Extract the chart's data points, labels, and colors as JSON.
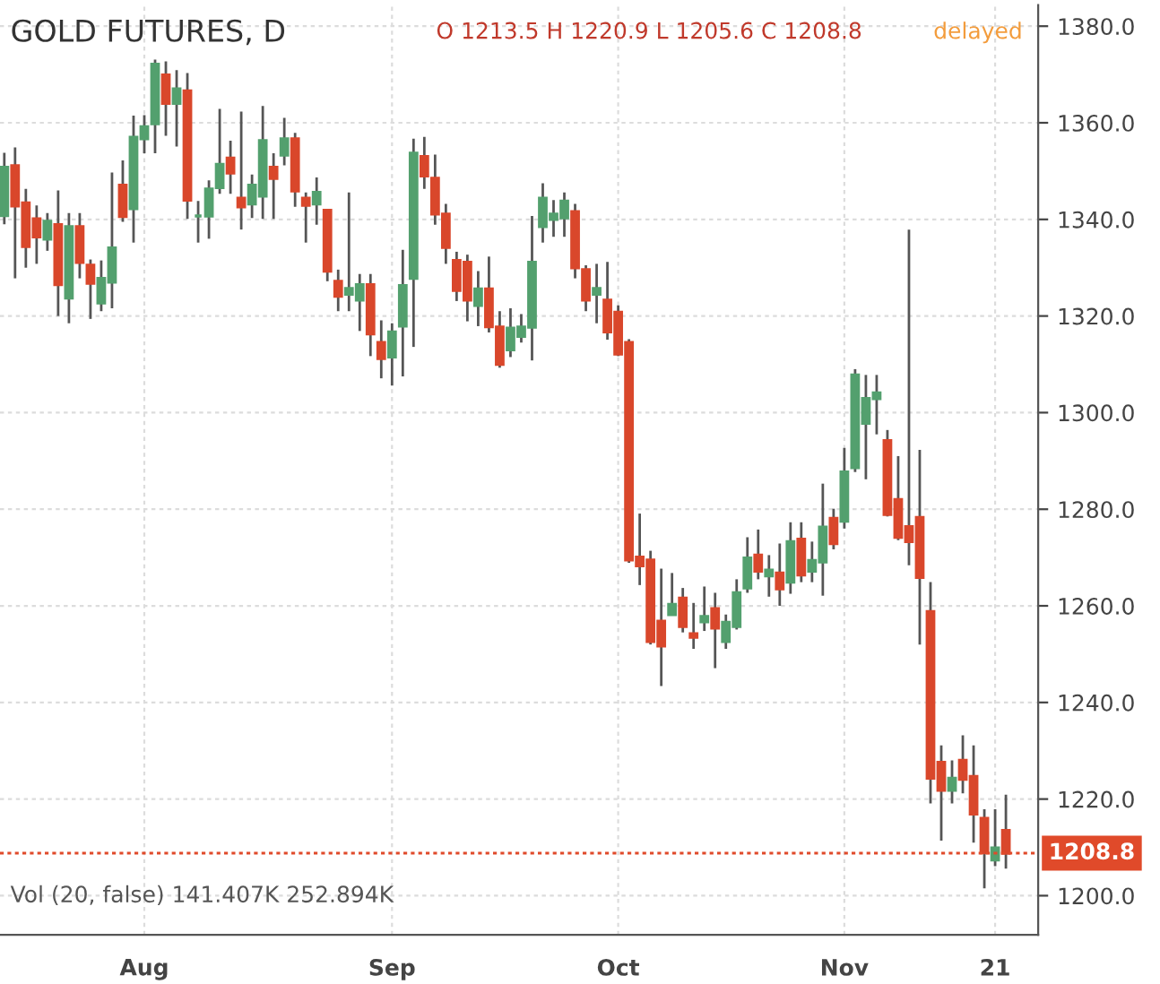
{
  "chart_data": {
    "type": "candlestick",
    "title": "GOLD FUTURES, D",
    "annotations": [
      "O 1213.5 H 1220.9 L 1205.6 C 1208.8",
      "delayed",
      "Vol (20, false) 141.407K 252.894K"
    ],
    "categories": [
      null,
      null,
      null,
      null,
      null,
      null,
      null,
      null,
      null,
      null,
      null,
      null,
      null,
      "Aug",
      null,
      null,
      null,
      null,
      null,
      null,
      null,
      null,
      null,
      null,
      null,
      null,
      null,
      null,
      null,
      null,
      null,
      null,
      null,
      null,
      null,
      null,
      "Sep",
      null,
      null,
      null,
      null,
      null,
      null,
      null,
      null,
      null,
      null,
      null,
      null,
      null,
      null,
      null,
      null,
      null,
      null,
      null,
      null,
      "Oct",
      null,
      null,
      null,
      null,
      null,
      null,
      null,
      null,
      null,
      null,
      null,
      null,
      null,
      null,
      null,
      null,
      null,
      null,
      null,
      null,
      "Nov",
      null,
      null,
      null,
      null,
      null,
      null,
      null,
      null,
      null,
      null,
      null,
      null,
      null,
      "21",
      null
    ],
    "ohlc": [
      [
        1340.8,
        1353.8,
        1339.0,
        1350.8
      ],
      [
        1351.1,
        1354.9,
        1327.8,
        1342.8
      ],
      [
        1343.4,
        1346.3,
        1330.0,
        1334.4
      ],
      [
        1340.1,
        1342.9,
        1330.8,
        1336.4
      ],
      [
        1335.9,
        1341.3,
        1333.5,
        1339.6
      ],
      [
        1338.9,
        1346.0,
        1320.0,
        1326.5
      ],
      [
        1323.7,
        1341.3,
        1318.5,
        1338.5
      ],
      [
        1338.5,
        1341.3,
        1327.8,
        1331.1
      ],
      [
        1330.5,
        1331.7,
        1319.4,
        1326.8
      ],
      [
        1322.7,
        1331.5,
        1321.0,
        1327.8
      ],
      [
        1327.0,
        1349.7,
        1321.6,
        1334.1
      ],
      [
        1347.1,
        1352.2,
        1339.5,
        1340.6
      ],
      [
        1342.2,
        1361.5,
        1335.2,
        1357.0
      ],
      [
        1356.7,
        1361.6,
        1353.7,
        1359.2
      ],
      [
        1359.8,
        1373.1,
        1353.7,
        1372.1
      ],
      [
        1369.9,
        1372.7,
        1357.3,
        1364.0
      ],
      [
        1364.0,
        1370.9,
        1355.1,
        1367.0
      ],
      [
        1366.6,
        1370.3,
        1340.1,
        1344.0
      ],
      [
        1340.7,
        1343.8,
        1335.2,
        1340.7
      ],
      [
        1340.7,
        1348.1,
        1336.0,
        1346.3
      ],
      [
        1346.6,
        1362.9,
        1345.3,
        1351.4
      ],
      [
        1352.7,
        1356.3,
        1345.3,
        1349.6
      ],
      [
        1344.4,
        1362.3,
        1337.9,
        1342.6
      ],
      [
        1343.2,
        1349.3,
        1340.3,
        1347.1
      ],
      [
        1344.8,
        1363.5,
        1340.1,
        1356.3
      ],
      [
        1350.8,
        1353.7,
        1340.1,
        1348.5
      ],
      [
        1353.3,
        1361.0,
        1351.2,
        1356.7
      ],
      [
        1356.7,
        1357.9,
        1342.6,
        1345.9
      ],
      [
        1344.4,
        1345.6,
        1335.2,
        1342.9
      ],
      [
        1343.2,
        1348.7,
        1338.9,
        1345.6
      ],
      [
        1341.9,
        1341.9,
        1327.2,
        1329.3
      ],
      [
        1327.2,
        1329.6,
        1321.0,
        1324.1
      ],
      [
        1324.5,
        1345.6,
        1321.0,
        1325.7
      ],
      [
        1323.3,
        1328.7,
        1316.9,
        1326.5
      ],
      [
        1326.5,
        1328.7,
        1311.7,
        1316.3
      ],
      [
        1314.5,
        1319.1,
        1307.1,
        1311.2
      ],
      [
        1311.5,
        1318.5,
        1305.6,
        1316.7
      ],
      [
        1317.9,
        1333.7,
        1307.5,
        1326.3
      ],
      [
        1327.8,
        1356.7,
        1313.6,
        1353.7
      ],
      [
        1353.0,
        1357.1,
        1346.3,
        1349.0
      ],
      [
        1348.5,
        1353.4,
        1338.9,
        1341.1
      ],
      [
        1341.1,
        1343.2,
        1330.8,
        1334.2
      ],
      [
        1331.5,
        1333.3,
        1323.1,
        1325.3
      ],
      [
        1331.1,
        1332.7,
        1318.9,
        1323.3
      ],
      [
        1322.2,
        1329.3,
        1317.9,
        1325.6
      ],
      [
        1325.6,
        1332.3,
        1316.6,
        1317.8
      ],
      [
        1317.7,
        1321.0,
        1309.3,
        1310.0
      ],
      [
        1313.0,
        1321.6,
        1311.5,
        1317.5
      ],
      [
        1315.8,
        1320.4,
        1314.5,
        1317.7
      ],
      [
        1317.7,
        1340.7,
        1310.8,
        1331.1
      ],
      [
        1338.5,
        1347.5,
        1335.2,
        1344.4
      ],
      [
        1340.0,
        1344.0,
        1336.4,
        1341.1
      ],
      [
        1340.3,
        1345.6,
        1336.4,
        1343.8
      ],
      [
        1341.6,
        1343.2,
        1327.8,
        1330.0
      ],
      [
        1329.6,
        1330.5,
        1321.0,
        1323.3
      ],
      [
        1324.5,
        1330.8,
        1318.5,
        1325.7
      ],
      [
        1323.3,
        1331.2,
        1315.1,
        1316.7
      ],
      [
        1320.8,
        1322.2,
        1311.7,
        1312.1
      ],
      [
        1314.5,
        1315.2,
        1268.9,
        1269.5
      ],
      [
        1270.1,
        1279.1,
        1264.3,
        1268.3
      ],
      [
        1269.5,
        1271.4,
        1252.0,
        1252.6
      ],
      [
        1256.8,
        1267.7,
        1243.4,
        1251.7
      ],
      [
        1258.2,
        1266.8,
        1258.2,
        1260.3
      ],
      [
        1261.6,
        1263.7,
        1254.5,
        1255.7
      ],
      [
        1254.2,
        1260.6,
        1251.1,
        1253.5
      ],
      [
        1256.7,
        1264.0,
        1254.8,
        1257.8
      ],
      [
        1259.4,
        1262.7,
        1247.1,
        1255.4
      ],
      [
        1252.6,
        1258.2,
        1251.1,
        1256.6
      ],
      [
        1255.7,
        1265.5,
        1255.1,
        1262.7
      ],
      [
        1263.7,
        1274.2,
        1262.7,
        1269.9
      ],
      [
        1270.5,
        1275.8,
        1265.5,
        1267.2
      ],
      [
        1266.2,
        1270.5,
        1261.9,
        1267.4
      ],
      [
        1266.8,
        1272.9,
        1260.0,
        1263.5
      ],
      [
        1264.9,
        1277.3,
        1262.5,
        1273.3
      ],
      [
        1273.8,
        1277.3,
        1264.9,
        1266.4
      ],
      [
        1267.2,
        1273.3,
        1264.9,
        1269.4
      ],
      [
        1269.1,
        1285.3,
        1262.1,
        1276.3
      ],
      [
        1278.1,
        1280.1,
        1271.7,
        1272.9
      ],
      [
        1277.5,
        1292.7,
        1276.0,
        1287.7
      ],
      [
        1288.6,
        1309.0,
        1287.7,
        1307.8
      ],
      [
        1297.8,
        1307.8,
        1286.2,
        1302.9
      ],
      [
        1302.9,
        1307.8,
        1295.5,
        1304.1
      ],
      [
        1294.2,
        1296.4,
        1278.5,
        1278.9
      ],
      [
        1282.0,
        1291.0,
        1273.6,
        1274.2
      ],
      [
        1276.4,
        1337.9,
        1268.4,
        1273.3
      ],
      [
        1278.3,
        1292.3,
        1252.0,
        1265.9
      ],
      [
        1258.8,
        1264.9,
        1219.1,
        1224.3
      ],
      [
        1227.6,
        1231.1,
        1211.4,
        1221.8
      ],
      [
        1221.8,
        1228.0,
        1219.1,
        1224.3
      ],
      [
        1228.0,
        1233.2,
        1221.2,
        1224.1
      ],
      [
        1224.7,
        1231.1,
        1211.0,
        1216.9
      ],
      [
        1216.0,
        1217.9,
        1201.5,
        1208.9
      ],
      [
        1207.4,
        1217.9,
        1206.1,
        1209.9
      ],
      [
        1213.5,
        1220.9,
        1205.6,
        1208.8
      ]
    ],
    "colors": [
      "#53a06e",
      "#d9472b",
      "#d9472b",
      "#d9472b",
      "#53a06e",
      "#d9472b",
      "#53a06e",
      "#d9472b",
      "#d9472b",
      "#53a06e",
      "#53a06e",
      "#d9472b",
      "#53a06e",
      "#53a06e",
      "#53a06e",
      "#d9472b",
      "#53a06e",
      "#d9472b",
      "#53a06e",
      "#53a06e",
      "#53a06e",
      "#d9472b",
      "#d9472b",
      "#53a06e",
      "#53a06e",
      "#d9472b",
      "#53a06e",
      "#d9472b",
      "#d9472b",
      "#53a06e",
      "#d9472b",
      "#d9472b",
      "#53a06e",
      "#53a06e",
      "#d9472b",
      "#d9472b",
      "#53a06e",
      "#53a06e",
      "#53a06e",
      "#d9472b",
      "#d9472b",
      "#d9472b",
      "#d9472b",
      "#d9472b",
      "#53a06e",
      "#d9472b",
      "#d9472b",
      "#53a06e",
      "#53a06e",
      "#53a06e",
      "#53a06e",
      "#53a06e",
      "#53a06e",
      "#d9472b",
      "#d9472b",
      "#53a06e",
      "#d9472b",
      "#d9472b",
      "#d9472b",
      "#d9472b",
      "#d9472b",
      "#d9472b",
      "#53a06e",
      "#d9472b",
      "#d9472b",
      "#53a06e",
      "#d9472b",
      "#53a06e",
      "#53a06e",
      "#53a06e",
      "#d9472b",
      "#53a06e",
      "#d9472b",
      "#53a06e",
      "#d9472b",
      "#53a06e",
      "#53a06e",
      "#d9472b",
      "#53a06e",
      "#53a06e",
      "#53a06e",
      "#53a06e",
      "#d9472b",
      "#d9472b",
      "#d9472b",
      "#d9472b",
      "#d9472b",
      "#d9472b",
      "#53a06e",
      "#d9472b",
      "#d9472b",
      "#d9472b",
      "#53a06e",
      "#d9472b"
    ],
    "ylim": [
      1191.9,
      1384.4
    ],
    "yticks": [
      {
        "value": 1200,
        "label": "1200.0"
      },
      {
        "value": 1220,
        "label": "1220.0"
      },
      {
        "value": 1240,
        "label": "1240.0"
      },
      {
        "value": 1260,
        "label": "1260.0"
      },
      {
        "value": 1280,
        "label": "1280.0"
      },
      {
        "value": 1300,
        "label": "1300.0"
      },
      {
        "value": 1320,
        "label": "1320.0"
      },
      {
        "value": 1340,
        "label": "1340.0"
      },
      {
        "value": 1360,
        "label": "1360.0"
      },
      {
        "value": 1380,
        "label": "1380.0"
      }
    ],
    "ref_lines": [
      {
        "axis": "y",
        "value": 1208.8,
        "label": "1208.8",
        "color": "#e04a2a",
        "line_style": "dotted"
      }
    ],
    "grid": true
  }
}
